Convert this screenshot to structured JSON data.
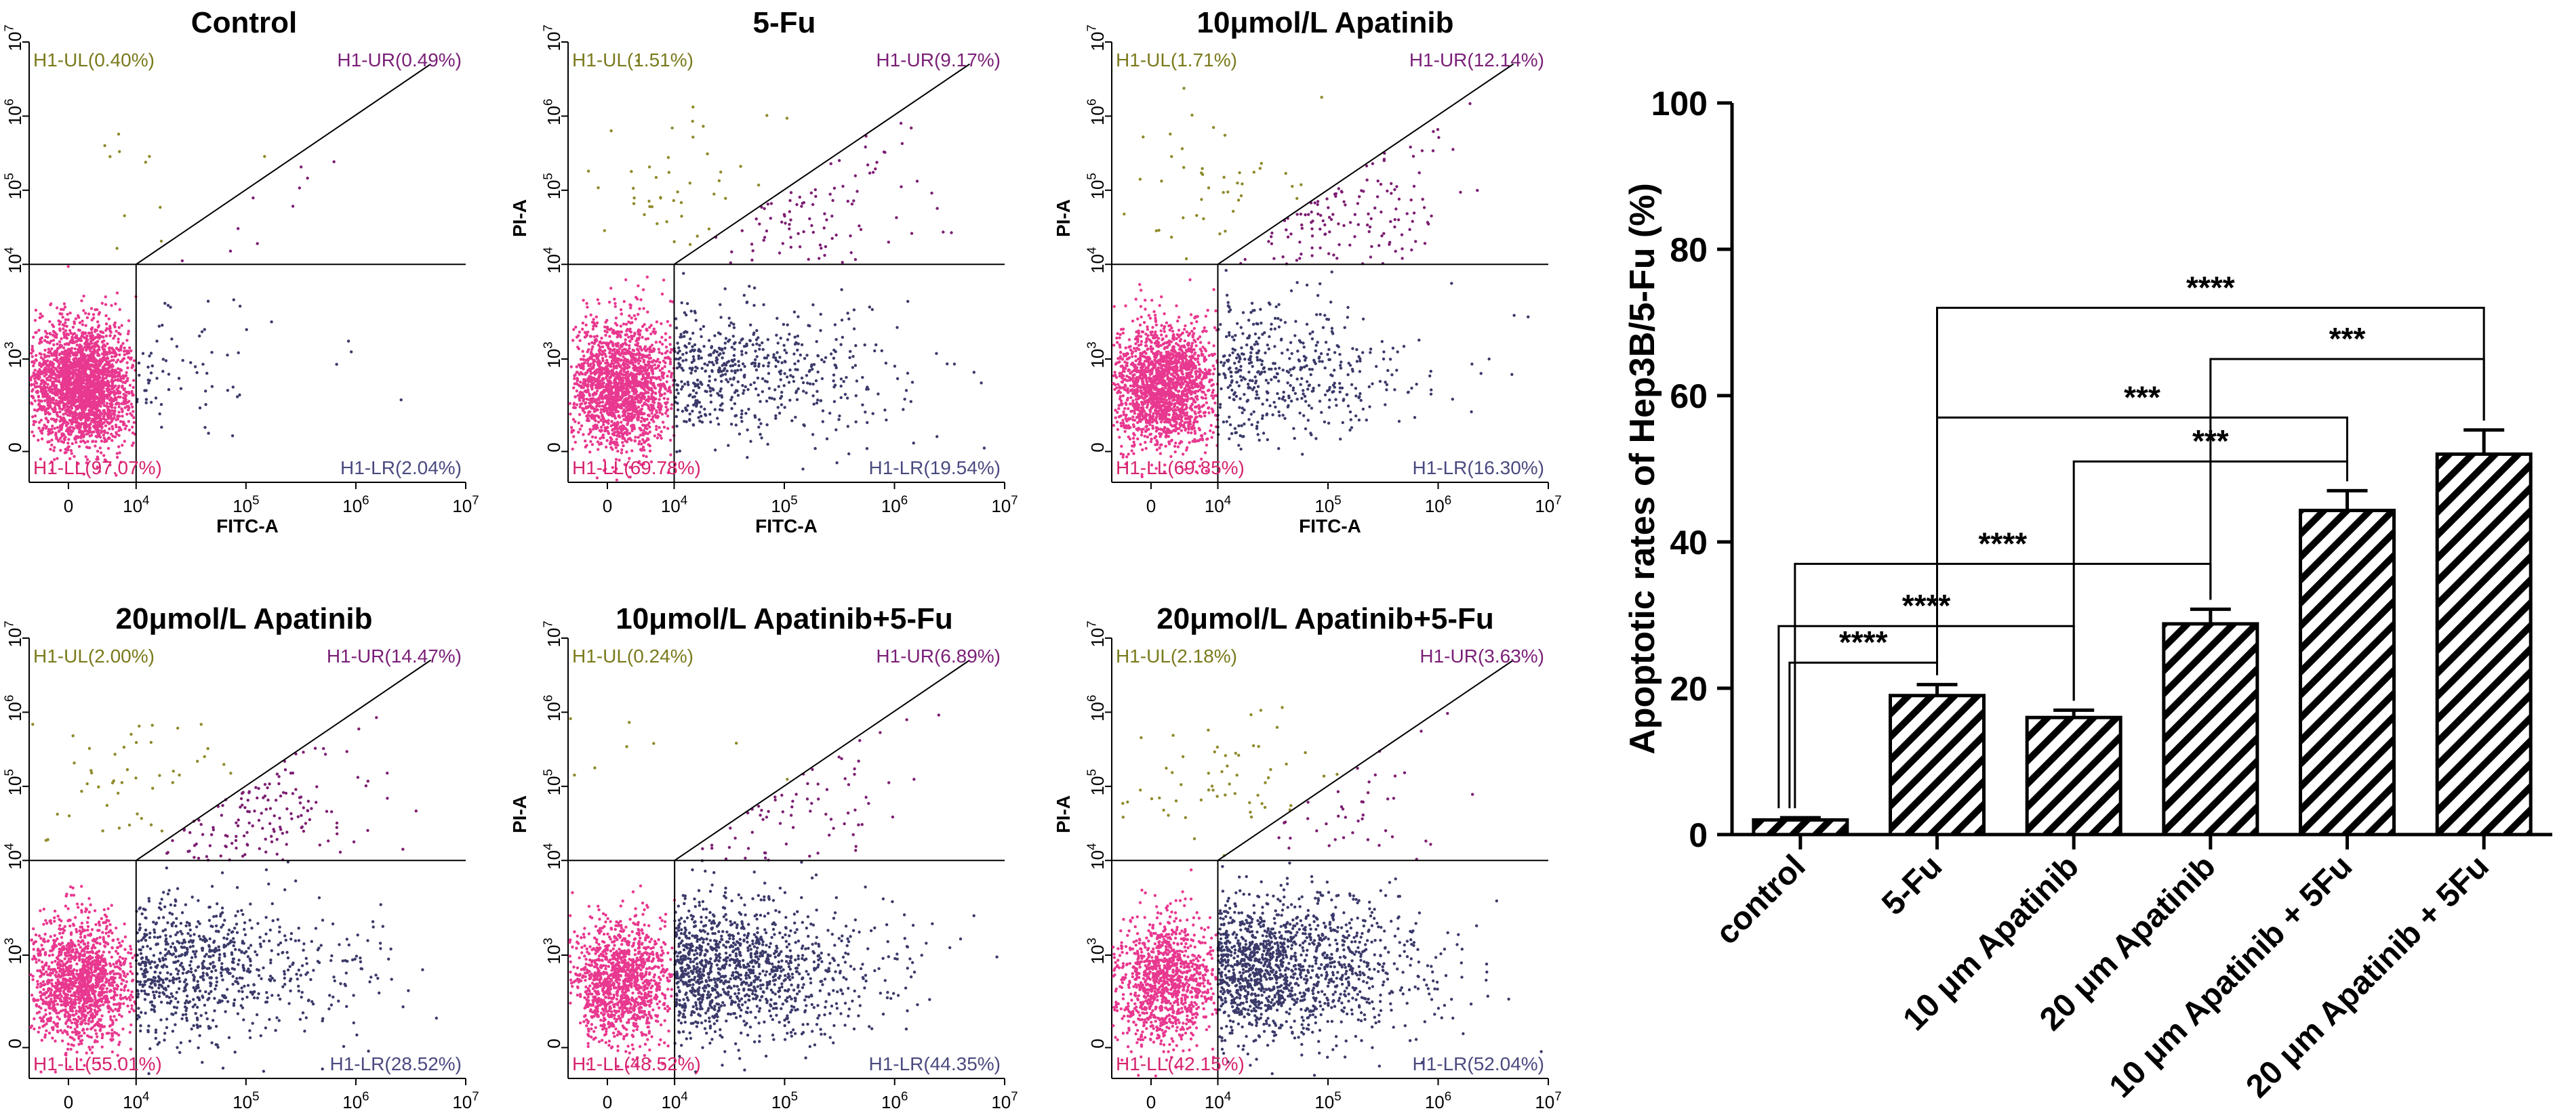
{
  "colors": {
    "ll": "#e8388f",
    "lr": "#3b3a6a",
    "ur": "#7d1e72",
    "ul": "#8e8a2a",
    "ul_label": "#7a7a1c",
    "ur_label": "#7a1f77",
    "lr_label": "#4a4a80",
    "ll_label": "#d6246f",
    "axis": "#000000"
  },
  "flow_common": {
    "xlabel": "FITC-A",
    "ylabel": "PI-A",
    "x_ticks": [
      "0",
      "10^4",
      "10^5",
      "10^6",
      "10^7"
    ],
    "y_ticks": [
      "0",
      "10^3",
      "10^4",
      "10^5",
      "10^6",
      "10^7"
    ]
  },
  "flow_panels": [
    {
      "title": "Control",
      "UL": "H1-UL(0.40%)",
      "UR": "H1-UR(0.49%)",
      "LL": "H1-LL(97.07%)",
      "LR": "H1-LR(2.04%)",
      "counts": {
        "ll": 2600,
        "lr": 70,
        "ur": 18,
        "ul": 14
      }
    },
    {
      "title": "5-Fu",
      "UL": "H1-UL(1.51%)",
      "UR": "H1-UR(9.17%)",
      "LL": "H1-LL(69.78%)",
      "LR": "H1-LR(19.54%)",
      "counts": {
        "ll": 1900,
        "lr": 560,
        "ur": 270,
        "ul": 46
      }
    },
    {
      "title": "10μmol/L Apatinib",
      "UL": "H1-UL(1.71%)",
      "UR": "H1-UR(12.14%)",
      "LL": "H1-LL(69.85%)",
      "LR": "H1-LR(16.30%)",
      "counts": {
        "ll": 1900,
        "lr": 460,
        "ur": 350,
        "ul": 50
      }
    },
    {
      "title": "20μmol/L Apatinib",
      "UL": "H1-UL(2.00%)",
      "UR": "H1-UR(14.47%)",
      "LL": "H1-LL(55.01%)",
      "LR": "H1-LR(28.52%)",
      "counts": {
        "ll": 1500,
        "lr": 800,
        "ur": 410,
        "ul": 58
      }
    },
    {
      "title": "10μmol/L Apatinib+5-Fu",
      "UL": "H1-UL(0.24%)",
      "UR": "H1-UR(6.89%)",
      "LL": "H1-LL(48.52%)",
      "LR": "H1-LR(44.35%)",
      "counts": {
        "ll": 1300,
        "lr": 1200,
        "ur": 200,
        "ul": 8
      }
    },
    {
      "title": "20μmol/L Apatinib+5-Fu",
      "UL": "H1-UL(2.18%)",
      "UR": "H1-UR(3.63%)",
      "LL": "H1-LL(42.15%)",
      "LR": "H1-LR(52.04%)",
      "counts": {
        "ll": 1150,
        "lr": 1400,
        "ur": 110,
        "ul": 62
      }
    }
  ],
  "chart_data": {
    "type": "bar",
    "ylabel": "Apoptotic rates of Hep3B/5-Fu (%)",
    "ylim": [
      0,
      100
    ],
    "y_ticks": [
      0,
      20,
      40,
      60,
      80,
      100
    ],
    "categories": [
      "control",
      "5-Fu",
      "10 μm Apatinib",
      "20 μm Apatinib",
      "10 μm Apatinib + 5Fu",
      "20 μm Apatinib + 5Fu"
    ],
    "values": [
      2.0,
      19.0,
      16.0,
      28.8,
      44.3,
      52.0
    ],
    "errors": [
      0.3,
      1.5,
      1.0,
      2.0,
      2.7,
      3.3
    ],
    "pattern": "diagonal-hatch",
    "significance": [
      {
        "from": 0,
        "to": 1,
        "label": "****",
        "y": 23.5
      },
      {
        "from": 0,
        "to": 2,
        "label": "****",
        "y": 28.5
      },
      {
        "from": 0,
        "to": 3,
        "label": "****",
        "y": 37
      },
      {
        "from": 2,
        "to": 4,
        "label": "***",
        "y": 51
      },
      {
        "from": 1,
        "to": 4,
        "label": "***",
        "y": 57
      },
      {
        "from": 3,
        "to": 5,
        "label": "***",
        "y": 65
      },
      {
        "from": 1,
        "to": 5,
        "label": "****",
        "y": 72
      }
    ]
  }
}
